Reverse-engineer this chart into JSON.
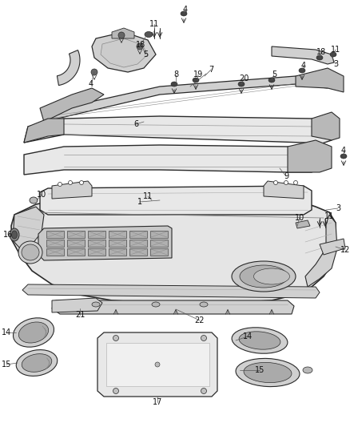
{
  "bg_color": "#ffffff",
  "line_color": "#2a2a2a",
  "fill_light": "#e8e8e8",
  "fill_mid": "#d0d0d0",
  "fill_dark": "#b8b8b8",
  "figsize": [
    4.38,
    5.33
  ],
  "dpi": 100,
  "label_fs": 7.0,
  "parts": {
    "item6_label": "6",
    "item1_label": "1",
    "item9_label": "9",
    "item12_label": "12",
    "item3_label": "3",
    "item10_label": "10",
    "item16_label": "16",
    "item11_label": "11",
    "item4_label": "4",
    "item5_label": "5",
    "item7_label": "7",
    "item8_label": "8",
    "item18_label": "18",
    "item19_label": "19",
    "item20_label": "20",
    "item14_label": "14",
    "item15_label": "15",
    "item17_label": "17",
    "item21_label": "21",
    "item22_label": "22"
  }
}
